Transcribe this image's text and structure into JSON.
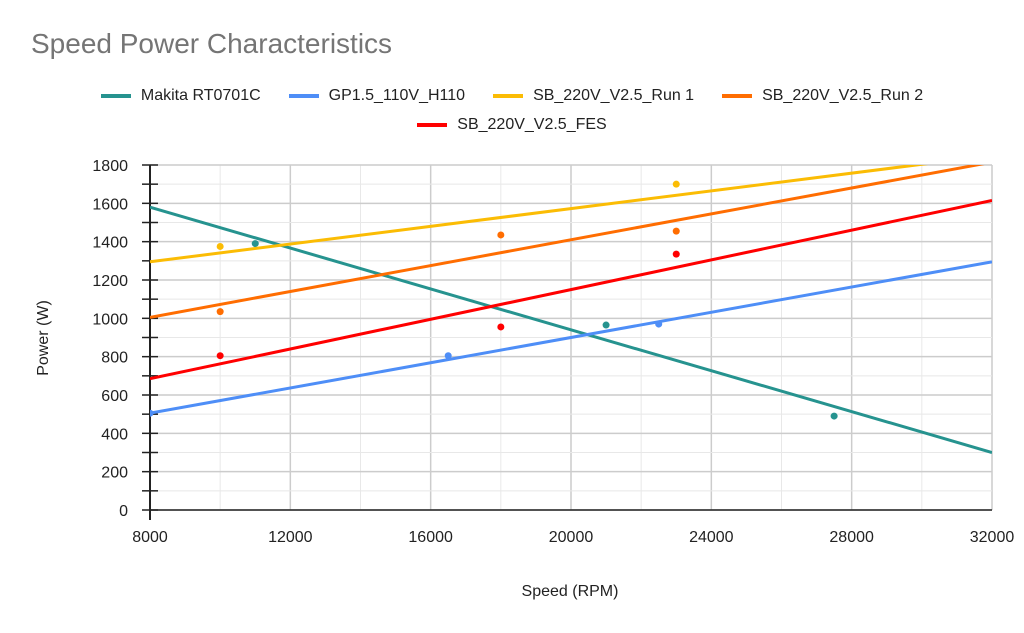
{
  "chart_data": {
    "type": "scatter",
    "title": "Speed Power Characteristics",
    "xlabel": "Speed (RPM)",
    "ylabel": "Power (W)",
    "xlim": [
      8000,
      32000
    ],
    "ylim": [
      0,
      1800
    ],
    "xticks": [
      "8000",
      "12000",
      "16000",
      "20000",
      "24000",
      "28000",
      "32000"
    ],
    "yticks": [
      "0",
      "200",
      "400",
      "600",
      "800",
      "1000",
      "1200",
      "1400",
      "1600",
      "1800"
    ],
    "grid": true,
    "legend_position": "top",
    "series": [
      {
        "name": "Makita RT0701C",
        "color": "#26938f",
        "points": [
          [
            11000,
            1390
          ],
          [
            21000,
            965
          ],
          [
            27500,
            490
          ]
        ],
        "trendline": [
          [
            8000,
            1580
          ],
          [
            32000,
            300
          ]
        ]
      },
      {
        "name": "GP1.5_110V_H110",
        "color": "#4e8ef7",
        "points": [
          [
            8000,
            505
          ],
          [
            16500,
            805
          ],
          [
            22500,
            970
          ]
        ],
        "trendline": [
          [
            8000,
            505
          ],
          [
            32000,
            1295
          ]
        ]
      },
      {
        "name": "SB_220V_V2.5_Run 1",
        "color": "#fbbc04",
        "points": [
          [
            10000,
            1375
          ],
          [
            23000,
            1700
          ]
        ],
        "trendline": [
          [
            8000,
            1295
          ],
          [
            32000,
            1850
          ]
        ]
      },
      {
        "name": "SB_220V_V2.5_Run 2",
        "color": "#ff6d01",
        "points": [
          [
            10000,
            1035
          ],
          [
            18000,
            1435
          ],
          [
            23000,
            1455
          ]
        ],
        "trendline": [
          [
            8000,
            1005
          ],
          [
            32000,
            1815
          ]
        ]
      },
      {
        "name": "SB_220V_V2.5_FES",
        "color": "#ff0000",
        "points": [
          [
            10000,
            805
          ],
          [
            18000,
            955
          ],
          [
            23000,
            1335
          ]
        ],
        "trendline": [
          [
            8000,
            685
          ],
          [
            32000,
            1615
          ]
        ]
      }
    ]
  }
}
